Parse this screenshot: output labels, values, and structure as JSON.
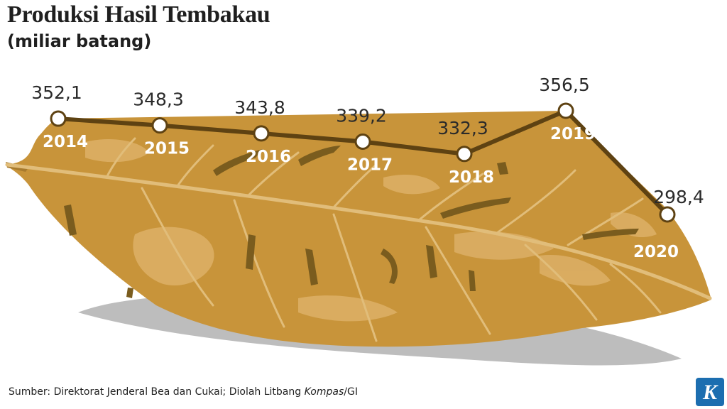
{
  "header": {
    "title": "Produksi Hasil Tembakau",
    "subtitle": "(miliar batang)"
  },
  "footer": {
    "source_prefix": "Sumber: Direktorat Jenderal Bea dan Cukai; Diolah Litbang ",
    "source_italic": "Kompas",
    "source_suffix": "/GI",
    "logo_letter": "K"
  },
  "colors": {
    "leaf": "#c8943a",
    "leaf_light": "#ddb067",
    "leaf_dark": "#7a5c1e",
    "line": "#5e4212",
    "shadow": "#bdbdbd",
    "logo_bg": "#1c6eb0"
  },
  "chart_data": {
    "type": "line",
    "title": "Produksi Hasil Tembakau",
    "subtitle": "(miliar batang)",
    "categories": [
      "2014",
      "2015",
      "2016",
      "2017",
      "2018",
      "2019",
      "2020"
    ],
    "values": [
      352.1,
      348.3,
      343.8,
      339.2,
      332.3,
      356.5,
      298.4
    ],
    "value_labels": [
      "352,1",
      "348,3",
      "343,8",
      "339,2",
      "332,3",
      "356,5",
      "298,4"
    ],
    "grid": false,
    "legend": "none"
  }
}
